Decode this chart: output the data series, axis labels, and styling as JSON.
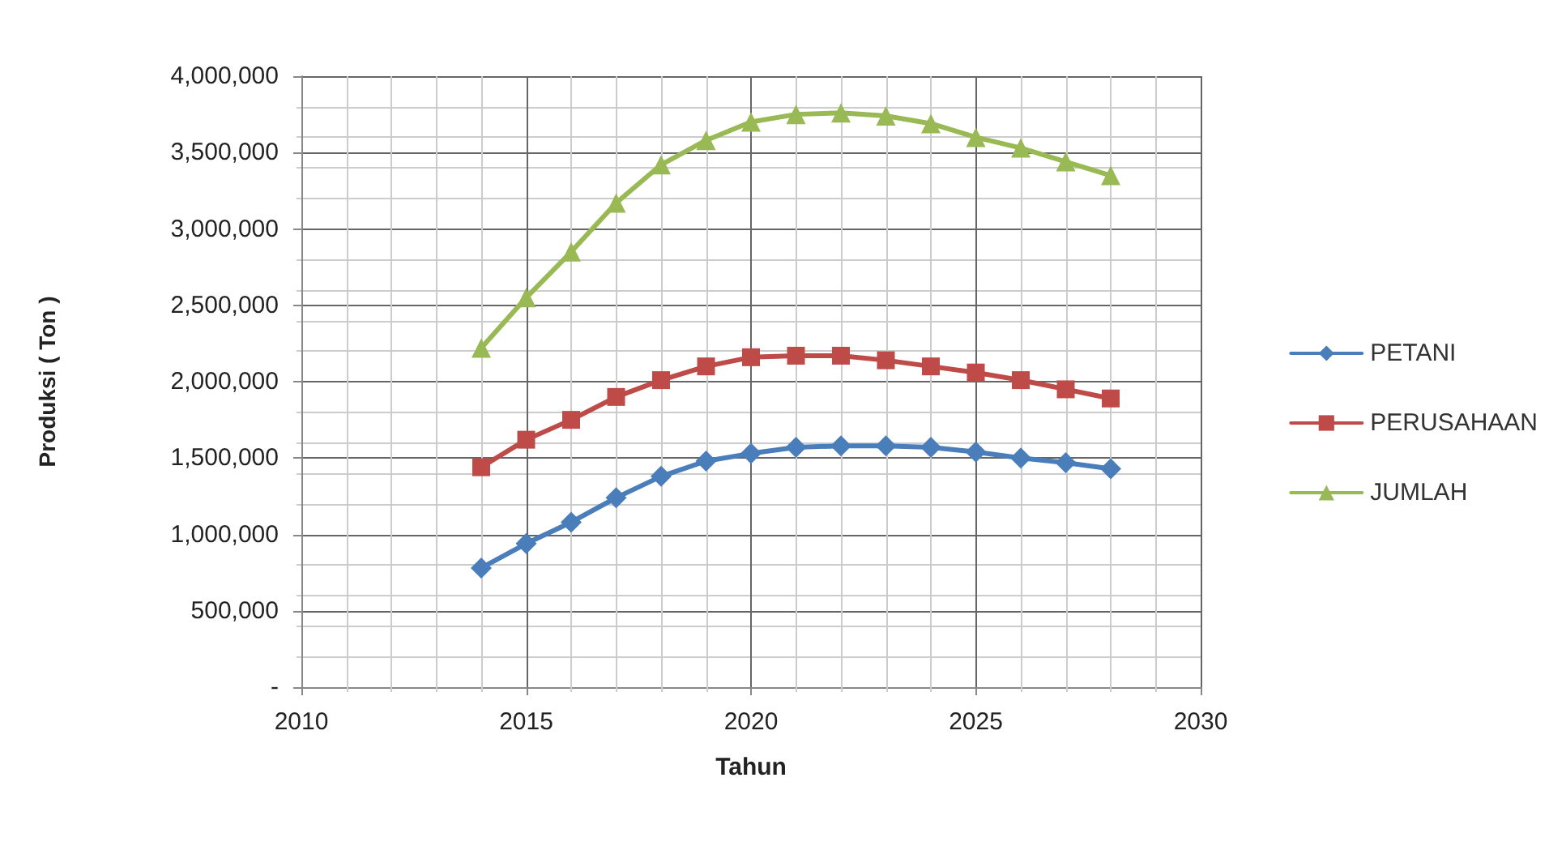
{
  "chart_data": {
    "type": "line",
    "xlabel": "Tahun",
    "ylabel": "Produksi ( Ton )",
    "x": [
      2014,
      2015,
      2016,
      2017,
      2018,
      2019,
      2020,
      2021,
      2022,
      2023,
      2024,
      2025,
      2026,
      2027,
      2028
    ],
    "series": [
      {
        "name": "PETANI",
        "color": "#4a7ebb",
        "marker": "diamond",
        "values": [
          780000,
          940000,
          1080000,
          1240000,
          1380000,
          1480000,
          1530000,
          1570000,
          1580000,
          1580000,
          1570000,
          1540000,
          1500000,
          1470000,
          1430000
        ]
      },
      {
        "name": "PERUSAHAAN",
        "color": "#be4b48",
        "marker": "square",
        "values": [
          1440000,
          1620000,
          1750000,
          1900000,
          2010000,
          2100000,
          2160000,
          2170000,
          2170000,
          2140000,
          2100000,
          2060000,
          2010000,
          1950000,
          1890000
        ]
      },
      {
        "name": "JUMLAH",
        "color": "#98b954",
        "marker": "triangle",
        "values": [
          2220000,
          2550000,
          2850000,
          3170000,
          3420000,
          3580000,
          3700000,
          3750000,
          3760000,
          3740000,
          3690000,
          3600000,
          3530000,
          3440000,
          3350000
        ]
      }
    ],
    "xlim": [
      2010,
      2030
    ],
    "xticks": [
      2010,
      2015,
      2020,
      2025,
      2030
    ],
    "ylim": [
      0,
      4000000
    ],
    "yticks": [
      {
        "value": 0,
        "label": "-"
      },
      {
        "value": 500000,
        "label": "500,000"
      },
      {
        "value": 1000000,
        "label": "1,000,000"
      },
      {
        "value": 1500000,
        "label": "1,500,000"
      },
      {
        "value": 2000000,
        "label": "2,000,000"
      },
      {
        "value": 2500000,
        "label": "2,500,000"
      },
      {
        "value": 3000000,
        "label": "3,000,000"
      },
      {
        "value": 3500000,
        "label": "3,500,000"
      },
      {
        "value": 4000000,
        "label": "4,000,000"
      }
    ],
    "grid": true,
    "legend": "right",
    "line_style": "solid"
  }
}
